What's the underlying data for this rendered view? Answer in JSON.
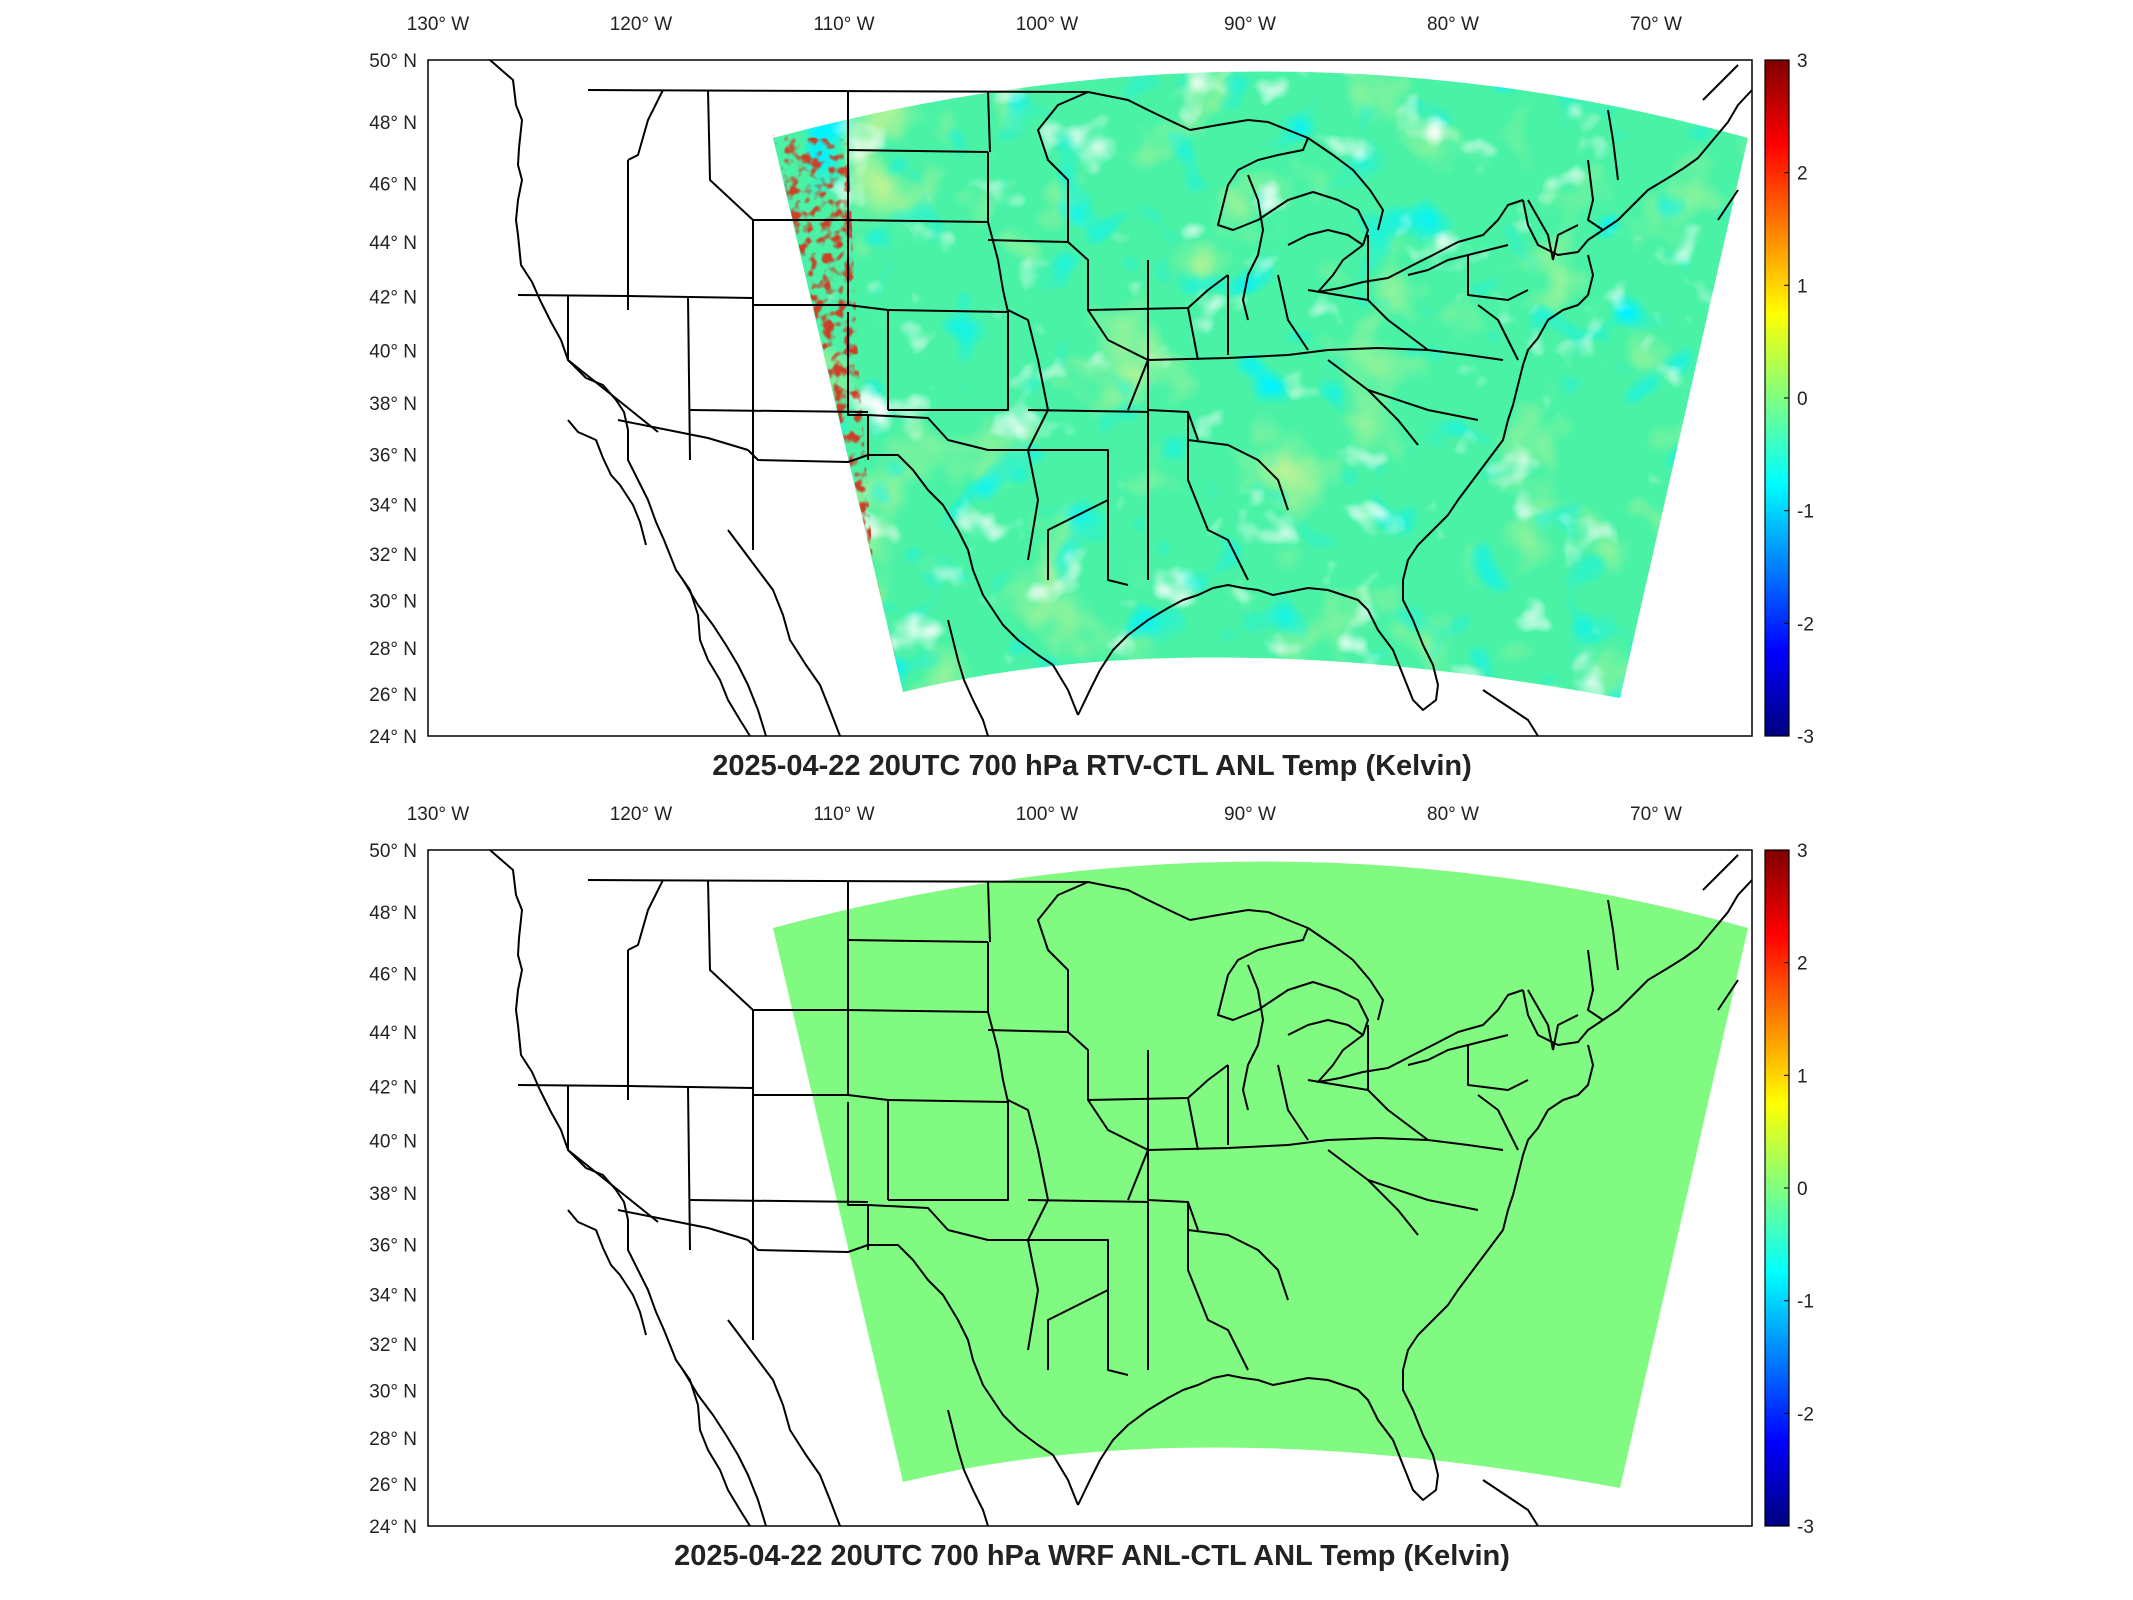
{
  "figure": {
    "panels": [
      {
        "title": "2025-04-22 20UTC 700 hPa RTV-CTL ANL Temp (Kelvin)",
        "mode": "varied",
        "field_color": "#4af2a6"
      },
      {
        "title": "2025-04-22 20UTC 700 hPa WRF ANL-CTL ANL Temp (Kelvin)",
        "mode": "uniform",
        "field_color": "#80fa80"
      }
    ],
    "lon_ticks": [
      "130° W",
      "120° W",
      "110° W",
      "100° W",
      "90° W",
      "80° W",
      "70° W"
    ],
    "lat_ticks": [
      "50° N",
      "48° N",
      "46° N",
      "44° N",
      "42° N",
      "40° N",
      "38° N",
      "36° N",
      "34° N",
      "32° N",
      "30° N",
      "28° N",
      "26° N",
      "24° N"
    ],
    "colorbar": {
      "min": -3,
      "max": 3,
      "ticks": [
        "3",
        "2",
        "1",
        "0",
        "-1",
        "-2",
        "-3"
      ],
      "colormap": "jet"
    }
  }
}
